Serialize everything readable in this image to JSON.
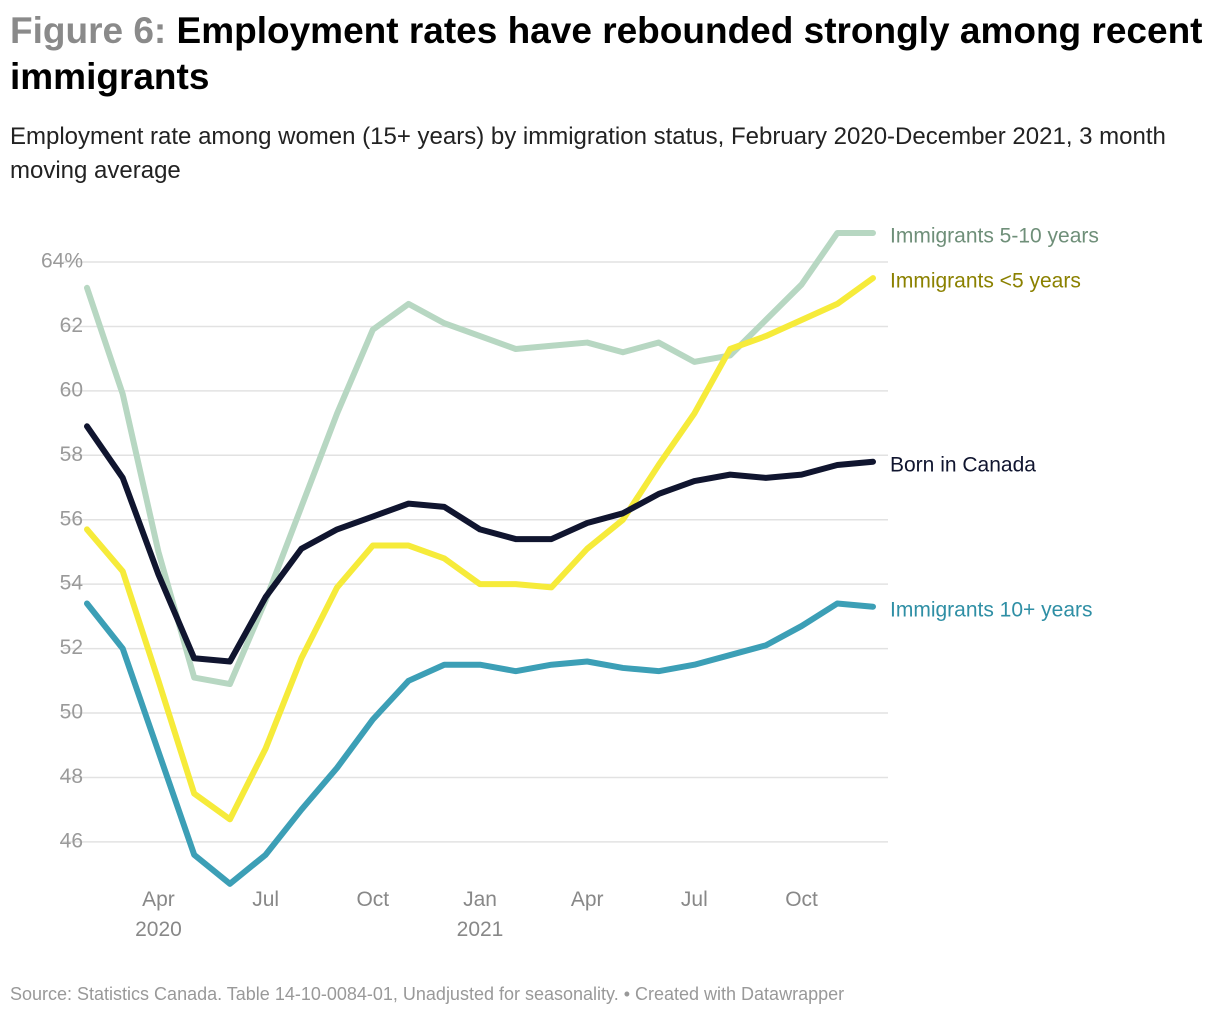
{
  "chart_data": {
    "type": "line",
    "title_prefix": "Figure 6:",
    "title": "Employment rates have rebounded strongly among recent immigrants",
    "subtitle": "Employment rate among women (15+ years) by immigration status, February 2020-December 2021, 3 month moving average",
    "source": "Source: Statistics Canada. Table 14-10-0084-01, Unadjusted for seasonality. • Created with Datawrapper",
    "categories": [
      null,
      null,
      "Apr 2020",
      null,
      null,
      "Jul",
      null,
      null,
      "Oct",
      null,
      null,
      "Jan 2021",
      null,
      null,
      "Apr",
      null,
      null,
      "Jul",
      null,
      null,
      "Oct",
      null,
      null
    ],
    "ylim": [
      44.6,
      65
    ],
    "yticks": [
      46,
      48,
      50,
      52,
      54,
      56,
      58,
      60,
      62,
      {
        "value": 64,
        "label": "64%"
      }
    ],
    "grid": true,
    "series": [
      {
        "name": "Immigrants 5-10 years",
        "color": "#b7d7c2",
        "label_color": "#6f8f79",
        "values": [
          63.2,
          59.9,
          55.0,
          51.1,
          50.9,
          53.5,
          56.4,
          59.3,
          61.9,
          62.7,
          62.1,
          61.7,
          61.3,
          61.4,
          61.5,
          61.2,
          61.5,
          60.9,
          61.1,
          62.2,
          63.3,
          64.9,
          64.9
        ]
      },
      {
        "name": "Immigrants <5 years",
        "color": "#f6eb3a",
        "label_color": "#8b8100",
        "values": [
          55.7,
          54.4,
          51.0,
          47.5,
          46.7,
          48.9,
          51.7,
          53.9,
          55.2,
          55.2,
          54.8,
          54.0,
          54.0,
          53.9,
          55.1,
          56.0,
          57.7,
          59.3,
          61.3,
          61.7,
          62.2,
          62.7,
          63.5
        ]
      },
      {
        "name": "Born in Canada",
        "color": "#10152f",
        "label_color": "#10152f",
        "values": [
          58.9,
          57.3,
          54.3,
          51.7,
          51.6,
          53.6,
          55.1,
          55.7,
          56.1,
          56.5,
          56.4,
          55.7,
          55.4,
          55.4,
          55.9,
          56.2,
          56.8,
          57.2,
          57.4,
          57.3,
          57.4,
          57.7,
          57.8
        ]
      },
      {
        "name": "Immigrants 10+ years",
        "color": "#3c9fb6",
        "label_color": "#2f8fa5",
        "values": [
          53.4,
          52.0,
          48.8,
          45.6,
          44.7,
          45.6,
          47.0,
          48.3,
          49.8,
          51.0,
          51.5,
          51.5,
          51.3,
          51.5,
          51.6,
          51.4,
          51.3,
          51.5,
          51.8,
          52.1,
          52.7,
          53.4,
          53.3
        ]
      }
    ]
  }
}
